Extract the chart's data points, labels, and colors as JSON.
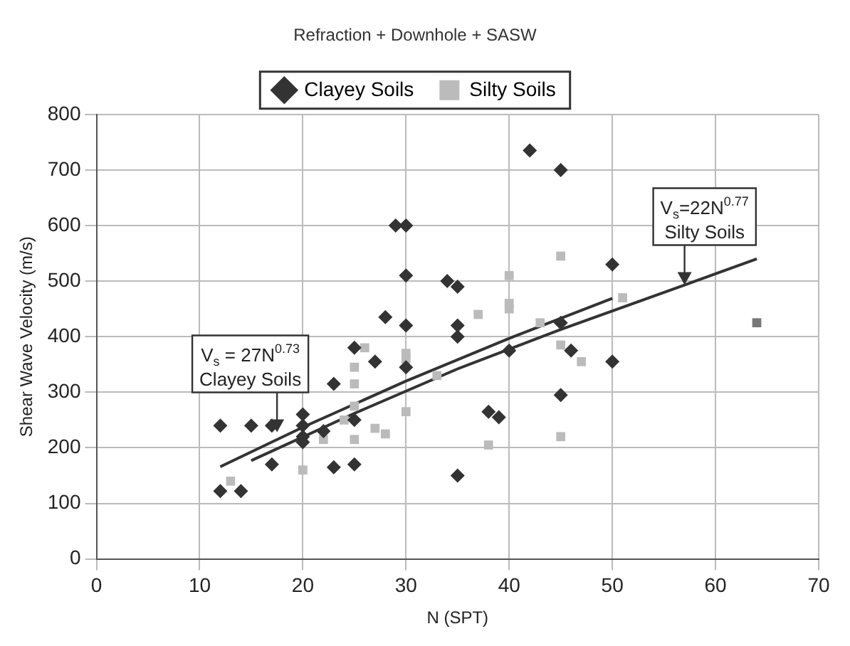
{
  "chart_data": {
    "type": "scatter",
    "title": "Refraction + Downhole + SASW",
    "xlabel": "N (SPT)",
    "ylabel": "Shear Wave Velocity (m/s)",
    "xlim": [
      0,
      70
    ],
    "xticks": [
      0,
      10,
      20,
      30,
      40,
      50,
      60,
      70
    ],
    "ylim": [
      0,
      800
    ],
    "yticks": [
      0,
      100,
      200,
      300,
      400,
      500,
      600,
      700,
      800
    ],
    "grid": true,
    "legend": "top",
    "series": [
      {
        "name": "Clayey Soils",
        "color": "#333333",
        "marker": "diamond",
        "x": [
          12,
          12,
          14,
          15,
          17,
          17,
          20,
          20,
          20,
          20,
          22,
          23,
          23,
          25,
          25,
          25,
          27,
          28,
          29,
          30,
          30,
          30,
          30,
          34,
          35,
          35,
          35,
          35,
          38,
          39,
          40,
          42,
          45,
          45,
          45,
          46,
          50,
          50
        ],
        "values": [
          240,
          122,
          122,
          240,
          240,
          170,
          260,
          240,
          220,
          210,
          230,
          165,
          315,
          380,
          250,
          170,
          355,
          435,
          600,
          600,
          510,
          420,
          345,
          500,
          490,
          420,
          400,
          150,
          265,
          255,
          375,
          735,
          700,
          425,
          295,
          375,
          530,
          355
        ]
      },
      {
        "name": "Silty Soils",
        "color": "#bbbbbb",
        "marker": "square",
        "x": [
          13,
          20,
          22,
          24,
          25,
          25,
          25,
          25,
          26,
          27,
          28,
          30,
          30,
          30,
          33,
          37,
          38,
          40,
          40,
          40,
          43,
          45,
          45,
          45,
          47,
          51,
          64
        ],
        "values": [
          140,
          160,
          215,
          250,
          345,
          315,
          275,
          215,
          380,
          235,
          225,
          370,
          265,
          360,
          330,
          440,
          205,
          510,
          460,
          450,
          425,
          545,
          385,
          220,
          355,
          470,
          425
        ],
        "colors": [
          "#bbbbbb",
          "#bbbbbb",
          "#bbbbbb",
          "#bbbbbb",
          "#bbbbbb",
          "#bbbbbb",
          "#bbbbbb",
          "#bbbbbb",
          "#bbbbbb",
          "#bbbbbb",
          "#bbbbbb",
          "#bbbbbb",
          "#bbbbbb",
          "#bbbbbb",
          "#bbbbbb",
          "#bbbbbb",
          "#bbbbbb",
          "#bbbbbb",
          "#bbbbbb",
          "#bbbbbb",
          "#bbbbbb",
          "#bbbbbb",
          "#bbbbbb",
          "#bbbbbb",
          "#bbbbbb",
          "#bbbbbb",
          "#777777"
        ]
      },
      {
        "type": "line",
        "color": "#333333",
        "marker": "none",
        "x": [
          12,
          20,
          30,
          40,
          50
        ],
        "values": [
          166,
          237,
          320,
          397,
          469
        ]
      },
      {
        "type": "line",
        "color": "#333333",
        "marker": "none",
        "x": [
          15,
          25,
          35,
          45,
          57,
          64
        ],
        "values": [
          177,
          262,
          342,
          413,
          493,
          540
        ]
      }
    ],
    "annotations": [
      {
        "text": "V$_{s}$ = 27N$^{0.73}$\nClayey Soils",
        "x": 17.5,
        "y": 228
      },
      {
        "text": "V$_{s}$=22N$^{0.77}$\nSilty Soils",
        "x": 57,
        "y": 493
      }
    ]
  }
}
